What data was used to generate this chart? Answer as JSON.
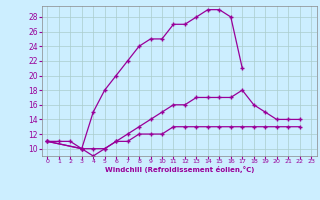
{
  "title": "",
  "xlabel": "Windchill (Refroidissement éolien,°C)",
  "ylabel": "",
  "bg_color": "#cceeff",
  "grid_color": "#aacccc",
  "line_color": "#990099",
  "xlim": [
    -0.5,
    23.5
  ],
  "ylim": [
    9.0,
    29.5
  ],
  "xticks": [
    0,
    1,
    2,
    3,
    4,
    5,
    6,
    7,
    8,
    9,
    10,
    11,
    12,
    13,
    14,
    15,
    16,
    17,
    18,
    19,
    20,
    21,
    22,
    23
  ],
  "yticks": [
    10,
    12,
    14,
    16,
    18,
    20,
    22,
    24,
    26,
    28
  ],
  "line1_x": [
    0,
    1,
    2,
    3,
    4,
    5,
    6,
    7,
    8,
    9,
    10,
    11,
    12,
    13,
    14,
    15,
    16,
    17
  ],
  "line1_y": [
    11,
    11,
    11,
    10,
    15,
    18,
    20,
    22,
    24,
    25,
    25,
    27,
    27,
    28,
    29,
    29,
    28,
    21
  ],
  "line2_x": [
    0,
    3,
    4,
    5,
    6,
    7,
    8,
    9,
    10,
    11,
    12,
    13,
    14,
    15,
    16,
    17,
    18,
    19,
    20,
    21,
    22
  ],
  "line2_y": [
    11,
    10,
    9,
    10,
    11,
    12,
    13,
    14,
    15,
    16,
    16,
    17,
    17,
    17,
    17,
    18,
    16,
    15,
    14,
    14,
    14
  ],
  "line3_x": [
    0,
    3,
    4,
    5,
    6,
    7,
    8,
    9,
    10,
    11,
    12,
    13,
    14,
    15,
    16,
    17,
    18,
    19,
    20,
    21,
    22
  ],
  "line3_y": [
    11,
    10,
    10,
    10,
    11,
    11,
    12,
    12,
    12,
    13,
    13,
    13,
    13,
    13,
    13,
    13,
    13,
    13,
    13,
    13,
    13
  ]
}
